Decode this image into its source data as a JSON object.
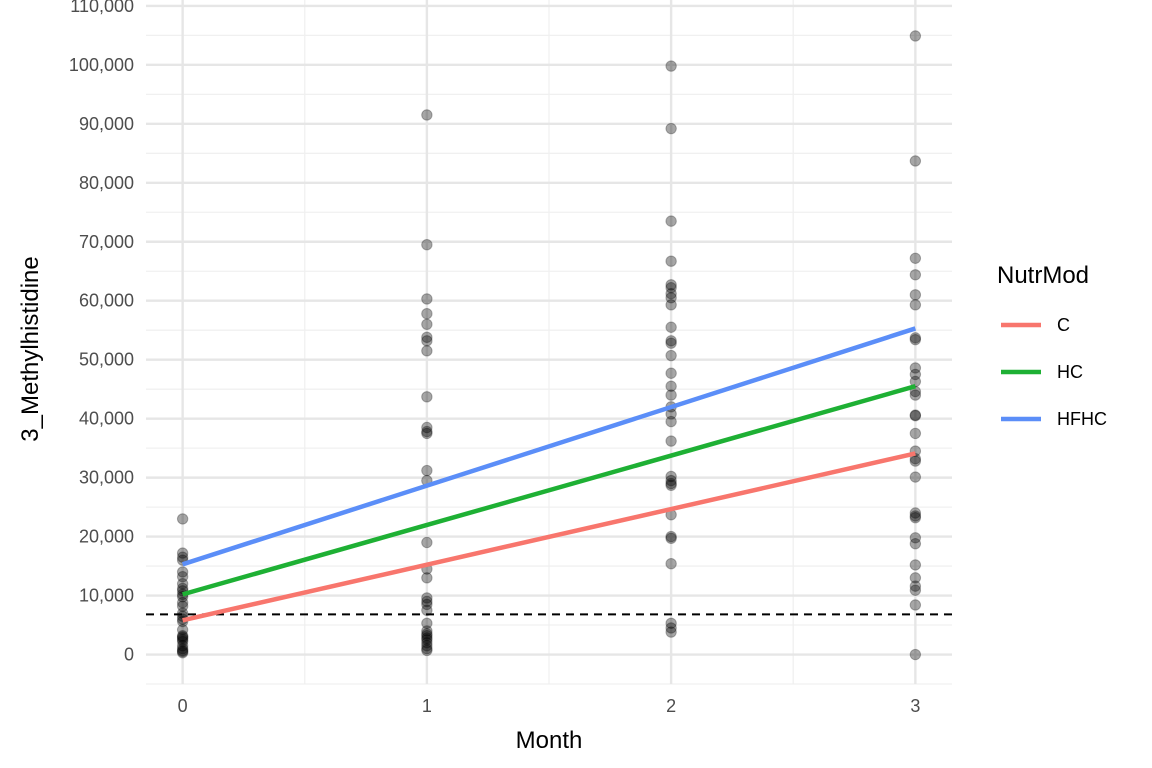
{
  "chart_data": {
    "type": "scatter",
    "xlabel": "Month",
    "ylabel": "3_Methylhistidine",
    "xlim": [
      -0.15,
      3.15
    ],
    "ylim": [
      -5000,
      111000
    ],
    "x_ticks": [
      0,
      1,
      2,
      3
    ],
    "x_tick_labels": [
      "0",
      "1",
      "2",
      "3"
    ],
    "y_ticks": [
      0,
      10000,
      20000,
      30000,
      40000,
      50000,
      60000,
      70000,
      80000,
      90000,
      100000,
      110000
    ],
    "y_tick_labels": [
      "0",
      "10,000",
      "20,000",
      "30,000",
      "40,000",
      "50,000",
      "60,000",
      "70,000",
      "80,000",
      "90,000",
      "100,000",
      "110,000"
    ],
    "grid": true,
    "reference_line": {
      "y": 6800,
      "style": "dashed",
      "color": "#000000"
    },
    "points": {
      "color": "#000000",
      "opacity": 0.35,
      "by_month": [
        {
          "x": 0,
          "y": [
            23000,
            17200,
            16500,
            16000,
            14000,
            13200,
            12000,
            11200,
            10800,
            10200,
            9800,
            8800,
            8200,
            7000,
            6500,
            6000,
            5600,
            4200,
            3200,
            3000,
            2800,
            2500,
            2200,
            1500,
            1000,
            700,
            500,
            300
          ]
        },
        {
          "x": 1,
          "y": [
            91500,
            69500,
            60300,
            57800,
            56000,
            53800,
            53200,
            51500,
            43700,
            38500,
            37800,
            37500,
            31200,
            29500,
            19000,
            14500,
            13000,
            9600,
            9000,
            8500,
            7500,
            5300,
            4000,
            3500,
            3200,
            2800,
            2500,
            2000,
            1500,
            1000,
            700
          ]
        },
        {
          "x": 2,
          "y": [
            99800,
            89200,
            73500,
            66700,
            62700,
            62200,
            61200,
            60500,
            59300,
            55500,
            53200,
            52800,
            50700,
            47700,
            45500,
            44000,
            42000,
            40800,
            39500,
            36200,
            30200,
            29500,
            29000,
            28700,
            23700,
            20000,
            19700,
            15400,
            5300,
            4500,
            3800
          ]
        },
        {
          "x": 3,
          "y": [
            104900,
            83700,
            67200,
            64400,
            61000,
            59300,
            53700,
            53400,
            48600,
            47500,
            46300,
            44600,
            44000,
            40600,
            40500,
            37500,
            34500,
            33200,
            32800,
            30100,
            24000,
            23500,
            23200,
            19800,
            18800,
            15200,
            13000,
            11600,
            10900,
            8400,
            0
          ]
        }
      ]
    },
    "legend_title": "NutrMod",
    "legend_position": "right",
    "series": [
      {
        "name": "C",
        "color": "#F8766D",
        "x": [
          0,
          3
        ],
        "y": [
          5800,
          34100
        ]
      },
      {
        "name": "HC",
        "color": "#1EB034",
        "x": [
          0,
          3
        ],
        "y": [
          10200,
          45500
        ]
      },
      {
        "name": "HFHC",
        "color": "#5B8EF8",
        "x": [
          0,
          3
        ],
        "y": [
          15300,
          55300
        ]
      }
    ]
  }
}
